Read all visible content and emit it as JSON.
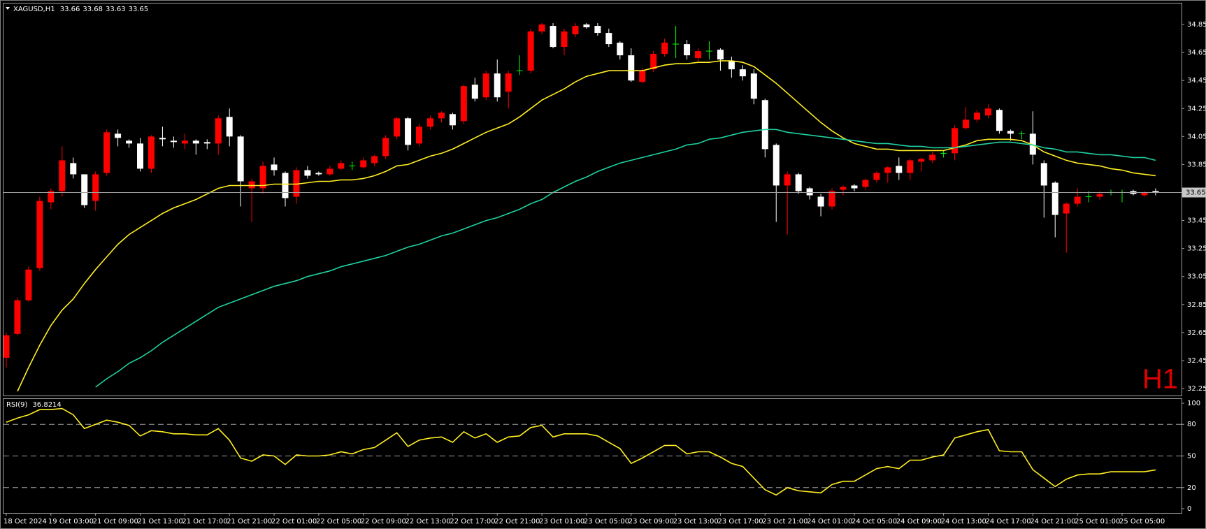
{
  "chart_data": [
    {
      "type": "candlestick",
      "title": "XAGUSD,H1",
      "annotation": "H1",
      "bull_color": "#ff0000",
      "bear_color": "#ffffff",
      "doji_color": "#00ff00",
      "open": [
        32.47,
        32.64,
        32.88,
        33.11,
        33.58,
        33.66,
        33.86,
        33.78,
        33.59,
        33.79,
        34.07,
        34.02,
        34.0,
        33.82,
        34.04,
        34.02,
        34.0,
        34.02,
        34.01,
        34.0,
        34.19,
        34.05,
        33.68,
        33.68,
        33.85,
        33.79,
        33.62,
        33.81,
        33.79,
        33.78,
        33.82,
        33.84,
        33.83,
        33.86,
        33.91,
        34.05,
        34.18,
        34.0,
        34.12,
        34.18,
        34.21,
        34.16,
        34.42,
        34.33,
        34.5,
        34.37,
        34.52,
        34.52,
        34.8,
        34.84,
        34.69,
        34.78,
        34.85,
        34.84,
        34.79,
        34.72,
        34.63,
        34.44,
        34.53,
        34.64,
        34.71,
        34.71,
        34.61,
        34.66,
        34.67,
        34.59,
        34.53,
        34.5,
        34.31,
        33.99,
        33.7,
        33.78,
        33.68,
        33.62,
        33.55,
        33.67,
        33.7,
        33.69,
        33.74,
        33.79,
        33.84,
        33.79,
        33.87,
        33.88,
        33.93,
        33.93,
        34.11,
        34.17,
        34.2,
        34.24,
        34.09,
        34.07,
        34.07,
        33.86,
        33.72,
        33.5,
        33.57,
        33.62,
        33.62,
        33.65,
        33.65,
        33.66,
        33.63,
        33.66
      ],
      "high": [
        32.65,
        32.9,
        33.12,
        33.62,
        33.68,
        33.98,
        33.9,
        33.78,
        33.8,
        34.1,
        34.1,
        34.03,
        34.04,
        34.06,
        34.12,
        34.05,
        34.07,
        34.03,
        34.03,
        34.2,
        34.25,
        34.06,
        33.75,
        33.87,
        33.9,
        33.8,
        33.83,
        33.84,
        33.8,
        33.84,
        33.88,
        33.87,
        33.9,
        33.92,
        34.06,
        34.19,
        34.19,
        34.14,
        34.2,
        34.23,
        34.22,
        34.42,
        34.47,
        34.52,
        34.6,
        34.52,
        34.63,
        34.82,
        34.86,
        34.86,
        34.82,
        34.86,
        34.86,
        34.86,
        34.82,
        34.73,
        34.68,
        34.54,
        34.66,
        34.75,
        34.84,
        34.74,
        34.68,
        34.73,
        34.68,
        34.62,
        34.56,
        34.53,
        34.32,
        34.0,
        33.8,
        33.79,
        33.69,
        33.64,
        33.68,
        33.7,
        33.71,
        33.75,
        33.8,
        33.84,
        33.9,
        33.89,
        33.9,
        33.94,
        33.95,
        34.13,
        34.26,
        34.24,
        34.28,
        34.25,
        34.1,
        34.09,
        34.23,
        33.88,
        33.73,
        33.58,
        33.68,
        33.66,
        33.66,
        33.67,
        33.67,
        33.67,
        33.66,
        33.68
      ],
      "low": [
        32.4,
        32.63,
        32.87,
        33.09,
        33.53,
        33.62,
        33.75,
        33.54,
        33.52,
        33.77,
        33.98,
        33.97,
        33.8,
        33.79,
        33.98,
        33.97,
        33.96,
        33.92,
        33.96,
        33.92,
        33.98,
        33.55,
        33.44,
        33.64,
        33.77,
        33.55,
        33.57,
        33.75,
        33.77,
        33.77,
        33.81,
        33.81,
        33.82,
        33.84,
        33.89,
        34.03,
        33.95,
        33.98,
        34.1,
        34.15,
        34.1,
        34.14,
        34.3,
        34.31,
        34.3,
        34.25,
        34.49,
        34.5,
        34.78,
        34.68,
        34.63,
        34.76,
        34.82,
        34.77,
        34.69,
        34.6,
        34.44,
        34.43,
        34.51,
        34.62,
        34.61,
        34.6,
        34.58,
        34.6,
        34.52,
        34.47,
        34.45,
        34.28,
        33.9,
        33.44,
        33.35,
        33.64,
        33.6,
        33.48,
        33.53,
        33.63,
        33.66,
        33.67,
        33.72,
        33.72,
        33.74,
        33.74,
        33.8,
        33.86,
        33.9,
        33.88,
        34.1,
        34.15,
        34.18,
        34.07,
        34.02,
        34.03,
        33.85,
        33.47,
        33.33,
        33.22,
        33.55,
        33.58,
        33.6,
        33.63,
        33.58,
        33.63,
        33.62,
        33.63
      ],
      "close": [
        32.63,
        32.88,
        33.1,
        33.59,
        33.66,
        33.88,
        33.78,
        33.56,
        33.78,
        34.08,
        34.04,
        34.0,
        33.82,
        34.05,
        34.03,
        34.01,
        34.02,
        34.0,
        34.0,
        34.18,
        34.05,
        33.73,
        33.73,
        33.84,
        33.81,
        33.61,
        33.81,
        33.77,
        33.78,
        33.82,
        33.86,
        33.84,
        33.88,
        33.91,
        34.04,
        34.18,
        33.99,
        34.12,
        34.18,
        34.22,
        34.13,
        34.41,
        34.32,
        34.5,
        34.33,
        34.5,
        34.52,
        34.8,
        34.85,
        34.69,
        34.8,
        34.84,
        34.83,
        34.79,
        34.71,
        34.63,
        34.45,
        34.52,
        34.64,
        34.72,
        34.71,
        34.63,
        34.66,
        34.66,
        34.6,
        34.53,
        34.48,
        34.32,
        33.96,
        33.7,
        33.78,
        33.66,
        33.63,
        33.55,
        33.66,
        33.69,
        33.68,
        33.74,
        33.79,
        33.83,
        33.79,
        33.88,
        33.89,
        33.92,
        33.93,
        34.11,
        34.17,
        34.22,
        34.25,
        34.09,
        34.07,
        34.07,
        33.92,
        33.7,
        33.49,
        33.57,
        33.62,
        33.62,
        33.64,
        33.65,
        33.65,
        33.64,
        33.65,
        33.65
      ],
      "series": [
        {
          "color": "#ffee22",
          "values": [
            null,
            32.23,
            32.4,
            32.56,
            32.7,
            32.81,
            32.89,
            33.0,
            33.1,
            33.19,
            33.28,
            33.35,
            33.4,
            33.45,
            33.5,
            33.54,
            33.57,
            33.6,
            33.64,
            33.68,
            33.7,
            33.7,
            33.7,
            33.7,
            33.71,
            33.71,
            33.71,
            33.72,
            33.73,
            33.73,
            33.74,
            33.74,
            33.75,
            33.77,
            33.8,
            33.84,
            33.85,
            33.88,
            33.91,
            33.93,
            33.96,
            34.0,
            34.04,
            34.08,
            34.11,
            34.14,
            34.19,
            34.25,
            34.31,
            34.35,
            34.39,
            34.44,
            34.48,
            34.5,
            34.52,
            34.52,
            34.52,
            34.52,
            34.54,
            34.56,
            34.57,
            34.57,
            34.58,
            34.58,
            34.59,
            34.59,
            34.58,
            34.55,
            34.49,
            34.43,
            34.36,
            34.29,
            34.22,
            34.15,
            34.09,
            34.04,
            34.0,
            33.98,
            33.96,
            33.96,
            33.95,
            33.95,
            33.95,
            33.95,
            33.95,
            33.97,
            33.99,
            34.02,
            34.03,
            34.03,
            34.03,
            34.02,
            33.99,
            33.94,
            33.91,
            33.88,
            33.86,
            33.85,
            33.84,
            33.82,
            33.81,
            33.79,
            33.78,
            33.77
          ]
        },
        {
          "color": "#1fd1a0",
          "values": [
            null,
            null,
            null,
            null,
            null,
            null,
            null,
            null,
            32.26,
            32.32,
            32.37,
            32.43,
            32.47,
            32.52,
            32.58,
            32.63,
            32.68,
            32.73,
            32.78,
            32.83,
            32.86,
            32.89,
            32.92,
            32.95,
            32.98,
            33.0,
            33.02,
            33.05,
            33.07,
            33.09,
            33.12,
            33.14,
            33.16,
            33.18,
            33.2,
            33.23,
            33.26,
            33.28,
            33.31,
            33.34,
            33.36,
            33.39,
            33.42,
            33.45,
            33.47,
            33.5,
            33.53,
            33.57,
            33.6,
            33.65,
            33.69,
            33.73,
            33.76,
            33.8,
            33.83,
            33.86,
            33.88,
            33.9,
            33.92,
            33.94,
            33.96,
            33.99,
            34.0,
            34.03,
            34.04,
            34.06,
            34.08,
            34.09,
            34.1,
            34.1,
            34.08,
            34.07,
            34.06,
            34.05,
            34.04,
            34.03,
            34.02,
            34.01,
            34.0,
            34.0,
            33.99,
            33.98,
            33.98,
            33.97,
            33.97,
            33.97,
            33.98,
            33.99,
            34.0,
            34.01,
            34.01,
            34.0,
            33.99,
            33.97,
            33.96,
            33.94,
            33.94,
            33.93,
            33.92,
            33.92,
            33.91,
            33.9,
            33.9,
            33.88
          ]
        }
      ],
      "ylim": [
        32.2,
        35.0
      ],
      "yticks": [
        34.85,
        34.65,
        34.45,
        34.25,
        34.05,
        33.85,
        33.65,
        33.45,
        33.25,
        33.05,
        32.85,
        32.65,
        32.45,
        32.25
      ],
      "grid": false
    },
    {
      "type": "line",
      "title": "RSI(9)",
      "color": "#ffee22",
      "categories": [
        "18 Oct 2024",
        null,
        null,
        null,
        "19 Oct 03:00",
        null,
        null,
        null,
        "21 Oct 09:00",
        null,
        null,
        null,
        "21 Oct 13:00",
        null,
        null,
        null,
        "21 Oct 17:00",
        null,
        null,
        null,
        "21 Oct 21:00",
        null,
        null,
        null,
        "22 Oct 01:00",
        null,
        null,
        null,
        "22 Oct 05:00",
        null,
        null,
        null,
        "22 Oct 09:00",
        null,
        null,
        null,
        "22 Oct 13:00",
        null,
        null,
        null,
        "22 Oct 17:00",
        null,
        null,
        null,
        "22 Oct 21:00",
        null,
        null,
        null,
        "23 Oct 01:00",
        null,
        null,
        null,
        "23 Oct 05:00",
        null,
        null,
        null,
        "23 Oct 09:00",
        null,
        null,
        null,
        "23 Oct 13:00",
        null,
        null,
        null,
        "23 Oct 17:00",
        null,
        null,
        null,
        "23 Oct 21:00",
        null,
        null,
        null,
        "24 Oct 01:00",
        null,
        null,
        null,
        "24 Oct 05:00",
        null,
        null,
        null,
        "24 Oct 09:00",
        null,
        null,
        null,
        "24 Oct 13:00",
        null,
        null,
        null,
        "24 Oct 17:00",
        null,
        null,
        null,
        "24 Oct 21:00",
        null,
        null,
        null,
        "25 Oct 01:00",
        null,
        null,
        null,
        "25 Oct 05:00",
        null,
        null,
        null
      ],
      "values": [
        82,
        86,
        89,
        94,
        94,
        95,
        89,
        76,
        80,
        84,
        82,
        79,
        69,
        74,
        73,
        71,
        71,
        70,
        70,
        76,
        65,
        48,
        45,
        51,
        50,
        42,
        51,
        50,
        50,
        51,
        54,
        52,
        56,
        58,
        65,
        72,
        59,
        65,
        67,
        68,
        63,
        73,
        67,
        71,
        63,
        68,
        69,
        77,
        79,
        68,
        71,
        71,
        71,
        69,
        63,
        57,
        43,
        48,
        54,
        60,
        60,
        52,
        54,
        54,
        49,
        43,
        40,
        29,
        18,
        13,
        20,
        17,
        16,
        15,
        23,
        26,
        26,
        32,
        38,
        40,
        38,
        46,
        46,
        49,
        51,
        67,
        70,
        73,
        75,
        55,
        54,
        54,
        37,
        29,
        21,
        28,
        32,
        33,
        33,
        35,
        35,
        35,
        35,
        36.8214
      ],
      "ylim": [
        -4,
        104
      ],
      "yticks": [
        100,
        80,
        50,
        20,
        0
      ],
      "levels": [
        80,
        50,
        20
      ]
    }
  ]
}
